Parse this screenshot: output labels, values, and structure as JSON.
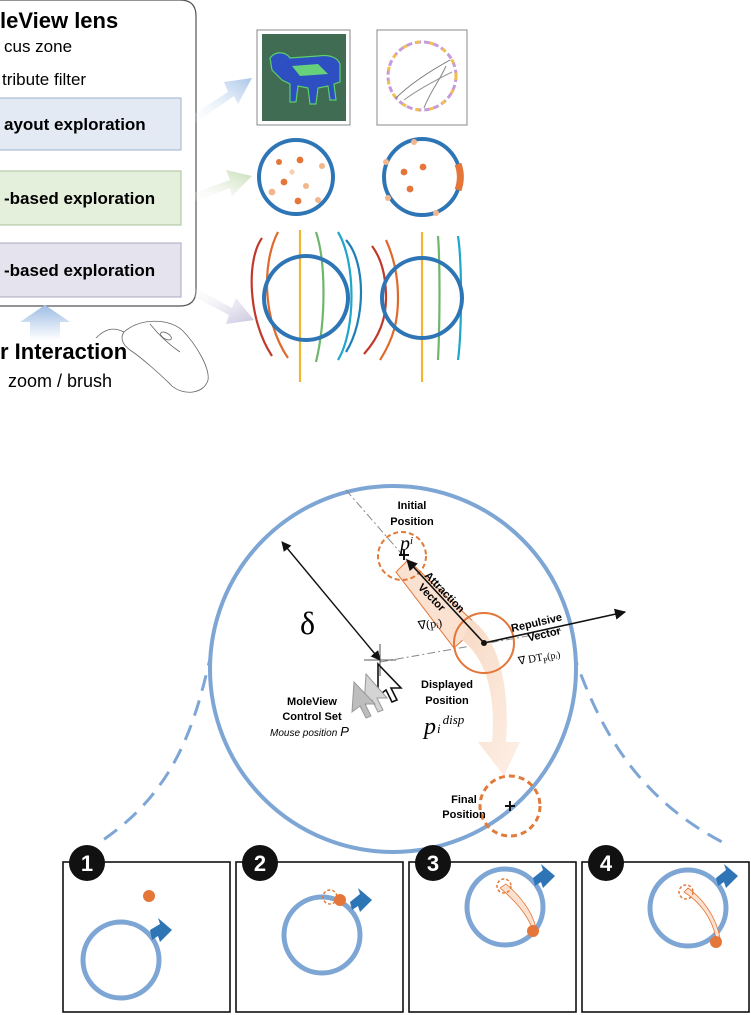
{
  "lens_panel": {
    "title": "leView lens",
    "items": [
      "cus zone",
      "tribute filter"
    ],
    "modes": [
      {
        "label": "ayout exploration",
        "fill": "#e3eaf3"
      },
      {
        "label": "-based exploration",
        "fill": "#e4efdc"
      },
      {
        "label": "-based exploration",
        "fill": "#e5e4ee"
      }
    ]
  },
  "interaction": {
    "title": "r Interaction",
    "subtitle": "zoom  / brush"
  },
  "colors": {
    "lens_blue": "#2e75b6",
    "lens_light": "#7ea6d5",
    "accent_orange": "#e4763a",
    "dashed_orange": "#e07b39"
  },
  "diagram": {
    "delta": "δ",
    "initial_position": [
      "Initial",
      "Position"
    ],
    "p_i": "p",
    "p_i_sub": "i",
    "attraction": [
      "Attraction",
      "Vector"
    ],
    "attraction_formula": "∇(pᵢ)",
    "repulsive": [
      "Repulsive",
      "Vector"
    ],
    "repulsive_formula": "∇ DT",
    "repulsive_formula_sub": "P",
    "repulsive_formula_tail": "(pᵢ)",
    "displayed_position": [
      "Displayed",
      "Position"
    ],
    "p_disp": "p",
    "p_disp_sub": "i",
    "p_disp_sup": "disp",
    "control_set": [
      "MoleView",
      "Control Set"
    ],
    "mouse_position": "Mouse position",
    "mouse_position_var": "P",
    "final_position": [
      "Final",
      "Position"
    ]
  },
  "steps": [
    "1",
    "2",
    "3",
    "4"
  ]
}
